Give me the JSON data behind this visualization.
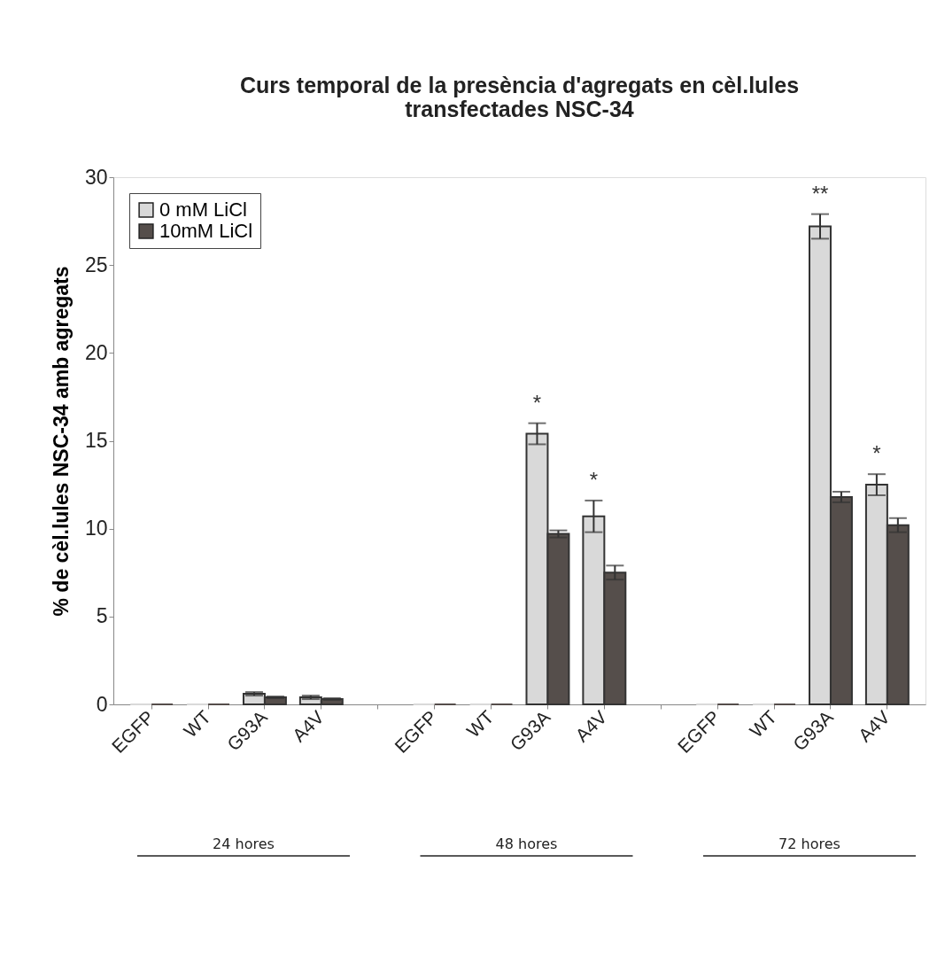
{
  "chart_data": {
    "type": "bar",
    "title": "Curs temporal de la presència d'agregats en cèl.lules\ntransfectades NSC-34",
    "ylabel": "% de cèl.lules NSC-34 amb agregats",
    "categories": [
      "EGFP",
      "WT",
      "G93A",
      "A4V",
      null,
      "EGFP",
      "WT",
      "G93A",
      "A4V",
      null,
      "EGFP",
      "WT",
      "G93A",
      "A4V"
    ],
    "series": [
      {
        "name": "0 mM LiCl",
        "color": "#d9d9d9",
        "values": [
          0,
          0,
          0.6,
          0.4,
          null,
          0,
          0,
          15.4,
          10.7,
          null,
          0,
          0,
          27.2,
          12.5
        ],
        "errors": [
          null,
          null,
          0.1,
          0.1,
          null,
          null,
          null,
          0.6,
          0.9,
          null,
          null,
          null,
          0.7,
          0.6
        ],
        "value_labels": [
          null,
          null,
          null,
          null,
          null,
          null,
          null,
          "*",
          "*",
          null,
          null,
          null,
          "**",
          "*"
        ]
      },
      {
        "name": "10mM LiCl",
        "color": "#554e4b",
        "values": [
          0,
          0,
          0.4,
          0.3,
          null,
          0,
          0,
          9.7,
          7.5,
          null,
          0,
          0,
          11.8,
          10.2
        ],
        "errors": [
          null,
          null,
          0.05,
          0.05,
          null,
          null,
          null,
          0.2,
          0.4,
          null,
          null,
          null,
          0.3,
          0.4
        ]
      }
    ],
    "annotations": [
      "24 hores",
      "48 hores",
      "72 hores"
    ],
    "ylim": [
      0,
      30
    ],
    "yticks": [
      0,
      5,
      10,
      15,
      20,
      25,
      30
    ],
    "grid": false,
    "legend": "top left"
  }
}
